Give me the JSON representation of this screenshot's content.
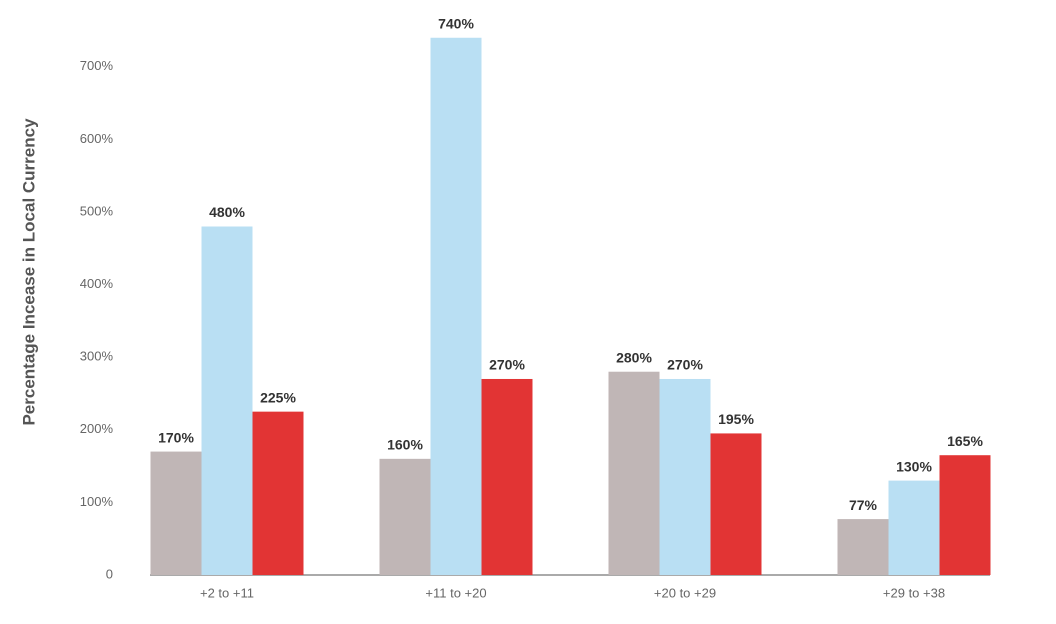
{
  "chart_data": {
    "type": "bar",
    "y_label": "Percentage Incease in Local Currency",
    "categories": [
      "+2 to +11",
      "+11 to +20",
      "+20 to +29",
      "+29 to +38"
    ],
    "series": [
      {
        "color": "#c0b6b6",
        "values": [
          170,
          160,
          280,
          77
        ],
        "value_labels": [
          "170%",
          "160%",
          "280%",
          "77%"
        ]
      },
      {
        "color": "#b9dff3",
        "values": [
          480,
          740,
          270,
          130
        ],
        "value_labels": [
          "480%",
          "740%",
          "270%",
          "130%"
        ]
      },
      {
        "color": "#e23434",
        "values": [
          225,
          270,
          195,
          165
        ],
        "value_labels": [
          "225%",
          "270%",
          "195%",
          "165%"
        ]
      }
    ],
    "ylim": [
      0,
      792
    ],
    "yticks": [
      0,
      {
        "value": 100,
        "label": "100%"
      },
      {
        "value": 200,
        "label": "200%"
      },
      {
        "value": 300,
        "label": "300%"
      },
      {
        "value": 400,
        "label": "400%"
      },
      {
        "value": 500,
        "label": "500%"
      },
      {
        "value": 600,
        "label": "600%"
      },
      {
        "value": 700,
        "label": "700%"
      }
    ],
    "grid": false
  }
}
